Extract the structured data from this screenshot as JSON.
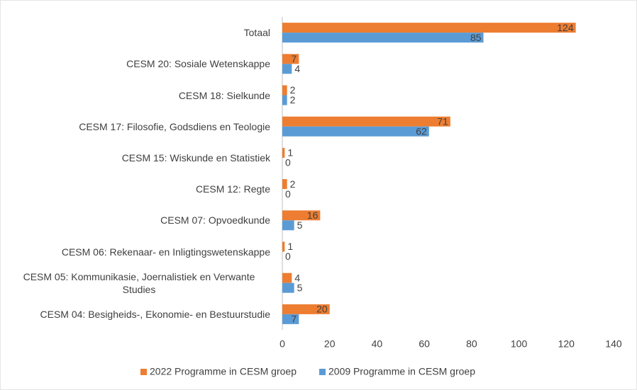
{
  "chart_data": {
    "type": "bar",
    "orientation": "horizontal",
    "categories": [
      "Totaal",
      "CESM 20: Sosiale Wetenskappe",
      "CESM 18: Sielkunde",
      "CESM 17: Filosofie, Godsdiens en Teologie",
      "CESM 15: Wiskunde en Statistiek",
      "CESM 12: Regte",
      "CESM 07: Opvoedkunde",
      "CESM 06: Rekenaar- en Inligtingswetenskappe",
      "CESM 05: Kommunikasie, Joernalistiek en Verwante Studies",
      "CESM 04: Besigheids-, Ekonomie- en Bestuurstudie"
    ],
    "series": [
      {
        "name": "2022 Programme in CESM groep",
        "color": "#ed7d31",
        "values": [
          124,
          7,
          2,
          71,
          1,
          2,
          16,
          1,
          4,
          20
        ]
      },
      {
        "name": "2009 Programme in CESM groep",
        "color": "#5b9bd5",
        "values": [
          85,
          4,
          2,
          62,
          0,
          0,
          5,
          0,
          5,
          7
        ]
      }
    ],
    "xlim": [
      0,
      140
    ],
    "xticks": [
      0,
      20,
      40,
      60,
      80,
      100,
      120,
      140
    ],
    "grid": false,
    "legend": "bottom"
  }
}
